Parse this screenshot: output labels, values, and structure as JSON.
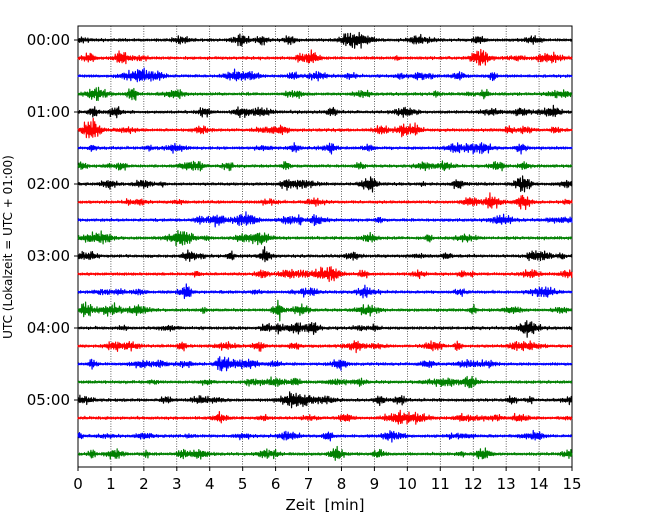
{
  "chart_data": {
    "type": "line",
    "title": "",
    "xlabel": "Zeit  [min]",
    "ylabel": "UTC (Lokalzeit = UTC + 01:00)",
    "xlim": [
      0,
      15
    ],
    "xticks": [
      0,
      1,
      2,
      3,
      4,
      5,
      6,
      7,
      8,
      9,
      10,
      11,
      12,
      13,
      14,
      15
    ],
    "x_grid": true,
    "y_tick_labels": [
      "00:00",
      "01:00",
      "02:00",
      "03:00",
      "04:00",
      "05:00"
    ],
    "traces_per_hour": 4,
    "trace_count": 24,
    "trace_interval_min": 15,
    "colors": [
      "#000000",
      "#ff0000",
      "#0000ff",
      "#008000"
    ]
  }
}
